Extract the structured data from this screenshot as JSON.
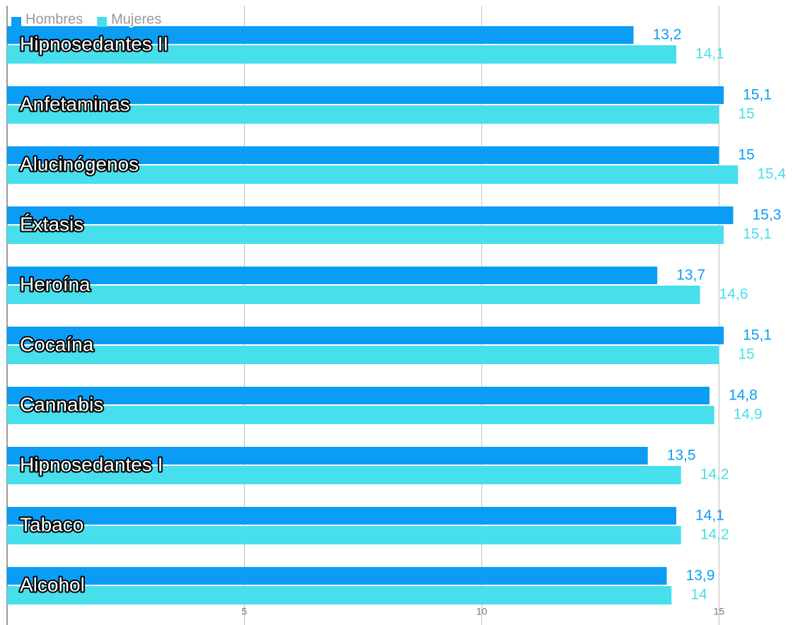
{
  "chart_data": {
    "type": "bar",
    "orientation": "horizontal",
    "categories": [
      "Hipnosedantes II",
      "Anfetaminas",
      "Alucinógenos",
      "Éxtasis",
      "Heroína",
      "Cocaína",
      "Cannabis",
      "Hipnosedantes I",
      "Tabaco",
      "Alcohol"
    ],
    "series": [
      {
        "name": "Hombres",
        "color": "#0b9df5",
        "values": [
          13.2,
          15.1,
          15,
          15.3,
          13.7,
          15.1,
          14.8,
          13.5,
          14.1,
          13.9
        ],
        "value_labels": [
          "13,2",
          "15,1",
          "15",
          "15,3",
          "13,7",
          "15,1",
          "14,8",
          "13,5",
          "14,1",
          "13,9"
        ]
      },
      {
        "name": "Mujeres",
        "color": "#47dfeb",
        "values": [
          14.1,
          15,
          15.4,
          15.1,
          14.6,
          15,
          14.9,
          14.2,
          14.2,
          14
        ],
        "value_labels": [
          "14,1",
          "15",
          "15,4",
          "15,1",
          "14,6",
          "15",
          "14,9",
          "14,2",
          "14,2",
          "14"
        ]
      }
    ],
    "xlim": [
      0,
      16.5
    ],
    "xticks": [
      5,
      10,
      15
    ],
    "grid": true,
    "legend": "top-left"
  }
}
